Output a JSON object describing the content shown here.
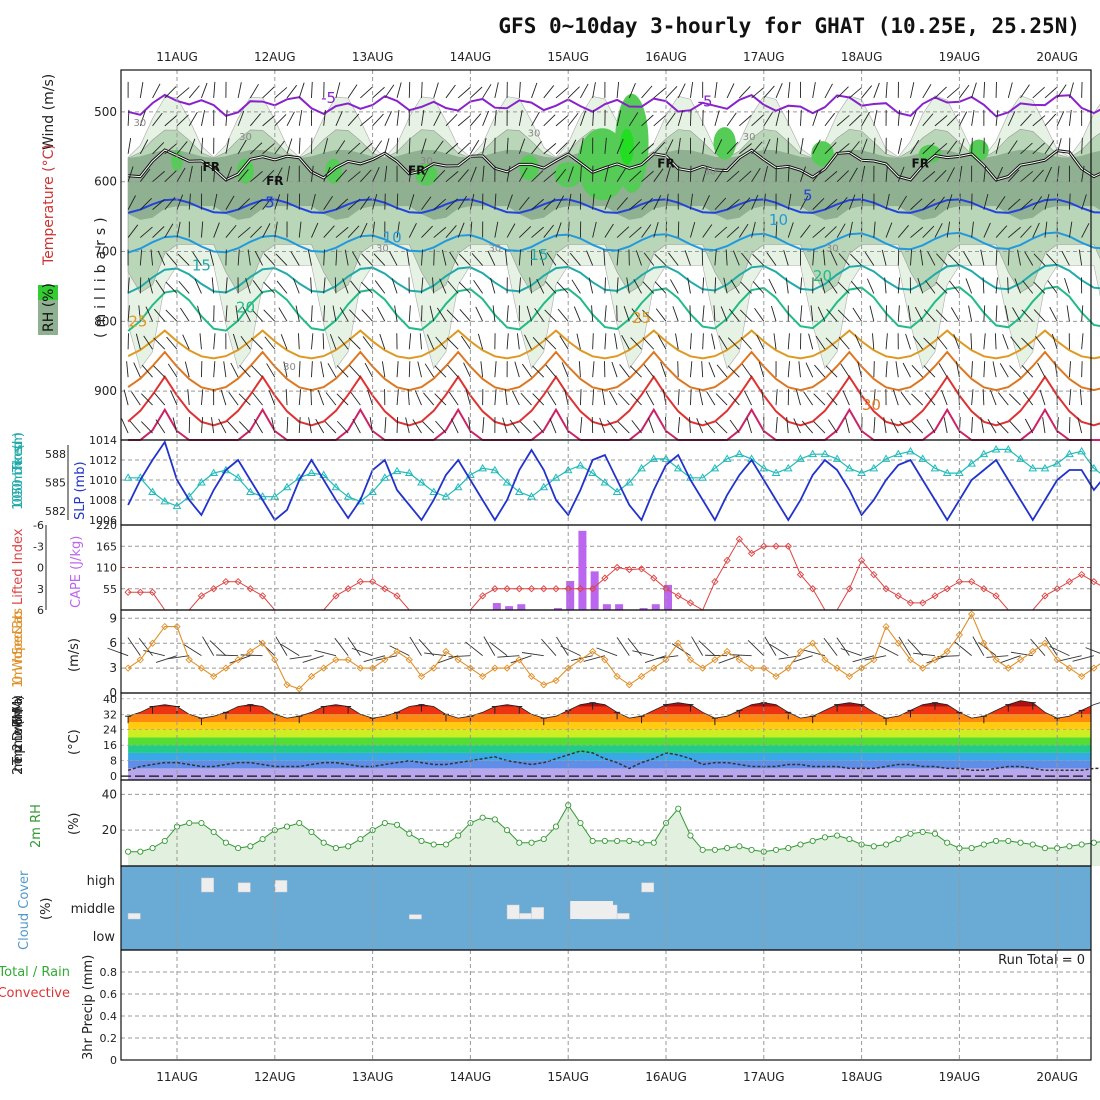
{
  "title": "GFS 0~10day 3-hourly for GHAT (10.25E, 25.25N)",
  "date_labels": [
    "11AUG",
    "12AUG",
    "13AUG",
    "14AUG",
    "15AUG",
    "16AUG",
    "17AUG",
    "18AUG",
    "19AUG",
    "20AUG"
  ],
  "colors": {
    "rh_light": "#e6f2e4",
    "rh_mid": "#b9d6b8",
    "rh_dark": "#90b092",
    "rh_green": "#55cc55",
    "rh_bright": "#22dd22",
    "wind_label": "#222222",
    "temp_label": "#cc3333",
    "rh_label_bg": "#33cc33",
    "slp_line": "#2233cc",
    "thickness_line": "#22bbbb",
    "lifted_index": "#dd4444",
    "cape_bar": "#bb66ee",
    "wind10m": "#e0902a",
    "rh2m": "#339933",
    "cloud_bg": "#6aabd6",
    "cloud_box": "#eeeeee",
    "precip_total": "#33aa33",
    "precip_conv": "#dd3333"
  },
  "panels": {
    "upper": {
      "ylabel_wind": "Wind (m/s)",
      "ylabel_temp": "Temperature (°C)",
      "ylabel_rh": "RH (%)",
      "ylabel_pressure": "(millibars)",
      "y_ticks": [
        "500",
        "600",
        "700",
        "800",
        "900"
      ],
      "isotherm_labels": [
        "-5",
        "-5",
        "5",
        "5",
        "10",
        "10",
        "15",
        "15",
        "20",
        "20",
        "25",
        "25",
        "30"
      ],
      "rh_labels": [
        "30",
        "30",
        "30",
        "30",
        "30",
        "30",
        "30",
        "30",
        "30",
        "30"
      ],
      "freezing_labels": [
        "FR",
        "FR",
        "FR",
        "FR",
        "FR"
      ]
    },
    "slp": {
      "ylabel_thickness": "1000-500mb Thickness (dm)",
      "ylabel_slp": "SLP (mb)",
      "thickness_ticks": [
        "588",
        "585",
        "582"
      ],
      "slp_ticks": [
        "1014",
        "1012",
        "1010",
        "1008",
        "1006"
      ]
    },
    "cape": {
      "ylabel_li": "Lifted Index",
      "ylabel_cape": "CAPE (J/kg)",
      "li_ticks": [
        "-6",
        "-3",
        "0",
        "3",
        "6"
      ],
      "cape_ticks": [
        "220",
        "165",
        "110",
        "55"
      ]
    },
    "wind10m": {
      "ylabel": "10m Wind Speed & Barbs",
      "unit": "(m/s)",
      "y_ticks": [
        "9",
        "6",
        "3",
        "0"
      ]
    },
    "temp2m": {
      "ylabel": "2m Temp 2m DewPt (6hr Min/Max)",
      "unit": "(°C)",
      "y_ticks": [
        "40",
        "32",
        "24",
        "16",
        "8",
        "0"
      ]
    },
    "rh2m": {
      "ylabel": "2m RH",
      "unit": "(%)",
      "y_ticks": [
        "40",
        "20"
      ]
    },
    "cloud": {
      "ylabel": "Cloud Cover",
      "unit": "(%)",
      "levels": [
        "high",
        "middle",
        "low"
      ]
    },
    "precip": {
      "ylabel_total": "Total / Rain",
      "ylabel_conv": "Convective",
      "ylabel_unit": "3hr Precip (mm)",
      "y_ticks": [
        "0.8",
        "0.6",
        "0.4",
        "0.2",
        "0"
      ],
      "run_total": "Run Total = 0"
    }
  },
  "chart_data": [
    {
      "type": "line",
      "panel": "upper-air cross-section",
      "x": [
        "11AUG",
        "12AUG",
        "13AUG",
        "14AUG",
        "15AUG",
        "16AUG",
        "17AUG",
        "18AUG",
        "19AUG",
        "20AUG"
      ],
      "yaxis": "pressure (mb)",
      "ylim": [
        440,
        970
      ],
      "isotherms_degC": [
        -5,
        0,
        5,
        10,
        15,
        20,
        25,
        30,
        35,
        40
      ],
      "isotherm_mean_pressure_mb": [
        490,
        575,
        635,
        690,
        742,
        785,
        825,
        860,
        900,
        950
      ],
      "isotherm_diurnal_amplitude_mb": [
        5,
        12,
        10,
        12,
        18,
        30,
        40,
        55,
        70,
        80
      ],
      "freezing_level_mb_approx": 575,
      "rh_shading_percent": [
        30,
        50,
        70,
        90
      ]
    },
    {
      "type": "line",
      "panel": "SLP and thickness",
      "series": [
        {
          "name": "SLP (mb)",
          "values": [
            1007.5,
            1010,
            1012,
            1013.8,
            1010,
            1008,
            1006.5,
            1009,
            1011,
            1012,
            1010,
            1008,
            1006,
            1007,
            1010,
            1012,
            1010,
            1008,
            1006.2,
            1008,
            1011,
            1012,
            1009,
            1007.5,
            1006,
            1008,
            1010.5,
            1012,
            1010,
            1008,
            1006,
            1008,
            1011,
            1013,
            1011,
            1008,
            1006.5,
            1009,
            1012,
            1012.5,
            1010,
            1007.5,
            1006,
            1009,
            1011.5,
            1012.5,
            1010,
            1008,
            1006,
            1008.5,
            1010.5,
            1012,
            1010,
            1008,
            1006,
            1008,
            1010.5,
            1012,
            1011,
            1009,
            1006.5,
            1008,
            1010,
            1011.5,
            1012,
            1010,
            1008,
            1006,
            1008,
            1010,
            1011,
            1012,
            1010,
            1008,
            1006,
            1008,
            1010,
            1011,
            1011,
            1009,
            1010.5
          ]
        },
        {
          "name": "1000-500mb Thickness (dm)",
          "values": [
            585.5,
            585.5,
            584,
            583,
            582.5,
            583.5,
            585,
            586,
            586.3,
            585.5,
            584,
            583.5,
            583.5,
            584.5,
            585.5,
            586,
            585.8,
            584.5,
            583.5,
            583,
            584,
            585.5,
            586.2,
            586,
            585,
            584,
            583.5,
            584.5,
            585.8,
            586.5,
            586.3,
            585,
            584,
            583.5,
            584.5,
            585.5,
            586.3,
            586.8,
            586,
            585,
            584,
            585,
            586.5,
            587.5,
            587.5,
            586.5,
            585.5,
            585.5,
            586.5,
            587.5,
            588,
            587.5,
            586.5,
            586,
            586.5,
            587.5,
            588,
            588,
            587.5,
            586.5,
            586,
            586.5,
            587.5,
            588,
            588.3,
            587.5,
            586.5,
            586,
            586,
            587,
            588,
            588.5,
            588.5,
            587.5,
            586.5,
            586.5,
            587,
            588,
            588.3,
            586.5,
            585.5
          ]
        }
      ],
      "ylim_slp": [
        1005.5,
        1014
      ],
      "ylim_thickness": [
        580.5,
        589.5
      ]
    },
    {
      "type": "bar",
      "panel": "CAPE and Lifted Index",
      "series": [
        {
          "name": "Lifted Index",
          "values": [
            3.5,
            3.5,
            3.5,
            6,
            6,
            6,
            4,
            3,
            2,
            2,
            3,
            4,
            6,
            6,
            6,
            6,
            6,
            4,
            3,
            2,
            2,
            3,
            4,
            6,
            6,
            6,
            6,
            6,
            6,
            4,
            3,
            3,
            3,
            3,
            3,
            3,
            3,
            3,
            3,
            1.5,
            0,
            0.3,
            0.2,
            1.5,
            3,
            4,
            5,
            6,
            2,
            -1,
            -4,
            -2,
            -3,
            -3,
            -3,
            1,
            3,
            6,
            6,
            3,
            -1,
            1,
            3,
            4,
            5,
            5,
            4,
            3,
            2,
            2,
            3,
            4,
            6,
            6,
            6,
            4,
            3,
            2,
            1,
            2,
            3,
            4
          ]
        },
        {
          "name": "CAPE (J/kg)",
          "values": [
            0,
            0,
            0,
            0,
            0,
            0,
            0,
            0,
            0,
            0,
            0,
            0,
            0,
            0,
            0,
            0,
            0,
            0,
            0,
            0,
            0,
            0,
            0,
            0,
            0,
            0,
            0,
            0,
            0,
            0,
            0,
            0,
            0,
            0,
            0,
            0,
            0,
            0,
            0,
            0,
            0,
            0,
            0,
            0,
            0,
            0,
            0,
            0,
            0,
            0,
            0,
            0,
            0,
            0,
            0,
            0,
            0,
            0,
            0,
            0,
            0,
            0,
            0,
            0,
            0,
            0,
            0,
            0,
            0,
            0,
            0,
            0,
            0,
            0,
            0,
            0,
            0,
            0,
            0,
            0,
            0,
            0,
            0,
            0
          ]
        }
      ],
      "cape_bars": [
        {
          "x": "14AUG18Z",
          "value": 18
        },
        {
          "x": "14AUG21Z",
          "value": 10
        },
        {
          "x": "15AUG00Z",
          "value": 15
        },
        {
          "x": "15AUG09Z",
          "value": 5
        },
        {
          "x": "15AUG12Z",
          "value": 75
        },
        {
          "x": "15AUG15Z",
          "value": 205
        },
        {
          "x": "15AUG18Z",
          "value": 100
        },
        {
          "x": "15AUG21Z",
          "value": 15
        },
        {
          "x": "16AUG00Z",
          "value": 15
        },
        {
          "x": "16AUG06Z",
          "value": 5
        },
        {
          "x": "16AUG09Z",
          "value": 15
        },
        {
          "x": "16AUG12Z",
          "value": 65
        }
      ],
      "ylim_li": [
        6,
        -6
      ],
      "ylim_cape": [
        0,
        220
      ]
    },
    {
      "type": "line",
      "panel": "10m wind speed",
      "series": [
        {
          "name": "10m Wind Speed (m/s)",
          "values": [
            3,
            4,
            6,
            8,
            8,
            4,
            3,
            2,
            3,
            4,
            5,
            6,
            4,
            1,
            0.5,
            2,
            3,
            4,
            4,
            3,
            3,
            4,
            5,
            4,
            2,
            3,
            5,
            4,
            3,
            2,
            3,
            3,
            4,
            2,
            1,
            1.5,
            3,
            4,
            5,
            4,
            2,
            1,
            2,
            3,
            4,
            6,
            4,
            3,
            4,
            5,
            4,
            3,
            3,
            2,
            3,
            5,
            6,
            4,
            3,
            2,
            3,
            4,
            8,
            6,
            4,
            3,
            4,
            5,
            7,
            9.5,
            6,
            4,
            3,
            4,
            5,
            6,
            4,
            3,
            2,
            3,
            4,
            6
          ]
        }
      ],
      "ylim": [
        0,
        10
      ]
    },
    {
      "type": "area",
      "panel": "2m temperature and dewpoint",
      "series": [
        {
          "name": "2m Temp max (°C)",
          "values": [
            31,
            33,
            36,
            37,
            36,
            32,
            30,
            31,
            33,
            36,
            37,
            36,
            32,
            30,
            31,
            33,
            36,
            37,
            36,
            32,
            30,
            31,
            33,
            36,
            37,
            36,
            32,
            30,
            31,
            33,
            36,
            37,
            36,
            32,
            30,
            31,
            34,
            37,
            38,
            37,
            33,
            30,
            31,
            34,
            37,
            38,
            37,
            33,
            30,
            31,
            34,
            37,
            38,
            37,
            33,
            30,
            31,
            34,
            37,
            38,
            37,
            33,
            30,
            31,
            34,
            37,
            38,
            37,
            33,
            30,
            31,
            34,
            37,
            39,
            38,
            33,
            30,
            31,
            34,
            37,
            39,
            38,
            33,
            31
          ]
        },
        {
          "name": "2m DewPt (°C)",
          "values": [
            3,
            5,
            6,
            7,
            7,
            6,
            5,
            5,
            6,
            7,
            7,
            6,
            5,
            5,
            5,
            6,
            7,
            7,
            6,
            5,
            5,
            6,
            7,
            8,
            7,
            6,
            6,
            7,
            8,
            9,
            10,
            8,
            7,
            6,
            7,
            9,
            11,
            13,
            12,
            9,
            7,
            4,
            7,
            9,
            12,
            11,
            9,
            6,
            7,
            7,
            6,
            5,
            5,
            5,
            6,
            6,
            5,
            5,
            5,
            4,
            4,
            4,
            5,
            6,
            6,
            5,
            5,
            4,
            4,
            3,
            3,
            4,
            5,
            5,
            4,
            3,
            3,
            3,
            3,
            4,
            4,
            3
          ]
        }
      ],
      "ylim": [
        -2,
        43
      ]
    },
    {
      "type": "area",
      "panel": "2m relative humidity",
      "series": [
        {
          "name": "2m RH (%)",
          "values": [
            8,
            8,
            10,
            14,
            22,
            24,
            24,
            19,
            13,
            10,
            11,
            15,
            20,
            22,
            24,
            19,
            13,
            10,
            11,
            15,
            20,
            24,
            23,
            18,
            14,
            12,
            12,
            17,
            24,
            27,
            26,
            20,
            13,
            13,
            15,
            22,
            34,
            24,
            14,
            14,
            14,
            14,
            13,
            13,
            24,
            32,
            17,
            9,
            9,
            10,
            11,
            9,
            8,
            9,
            10,
            12,
            14,
            16,
            17,
            15,
            12,
            11,
            12,
            15,
            18,
            19,
            18,
            13,
            10,
            10,
            12,
            14,
            14,
            13,
            12,
            10,
            10,
            11,
            12,
            13,
            14,
            15,
            14,
            9,
            8,
            9,
            11,
            14,
            16
          ]
        }
      ],
      "ylim": [
        0,
        48
      ]
    },
    {
      "type": "bar",
      "panel": "cloud cover",
      "series": [
        {
          "name": "high",
          "values": [
            {
              "x": "11AUG15Z",
              "value": 100
            },
            {
              "x": "12AUG00Z",
              "value": 60
            },
            {
              "x": "12AUG09Z",
              "value": 80
            },
            {
              "x": "16AUG03Z",
              "value": 60
            }
          ]
        },
        {
          "name": "middle",
          "values": [
            {
              "x": "10AUG21Z",
              "value": 30
            },
            {
              "x": "13AUG18Z",
              "value": 20
            },
            {
              "x": "14AUG18Z",
              "value": 100
            },
            {
              "x": "14AUG21Z",
              "value": 30
            },
            {
              "x": "15AUG00Z",
              "value": 80
            },
            {
              "x": "15AUG12Z",
              "value": 100
            },
            {
              "x": "15AUG15Z",
              "value": 120
            },
            {
              "x": "15AUG18Z",
              "value": 100
            },
            {
              "x": "15AUG21Z",
              "value": 30
            }
          ]
        },
        {
          "name": "low",
          "values": []
        }
      ]
    },
    {
      "type": "bar",
      "panel": "3hr precipitation",
      "series": [
        {
          "name": "Total / Rain (mm)",
          "values": []
        },
        {
          "name": "Convective (mm)",
          "values": []
        }
      ],
      "ylim": [
        0,
        1.0
      ]
    }
  ]
}
